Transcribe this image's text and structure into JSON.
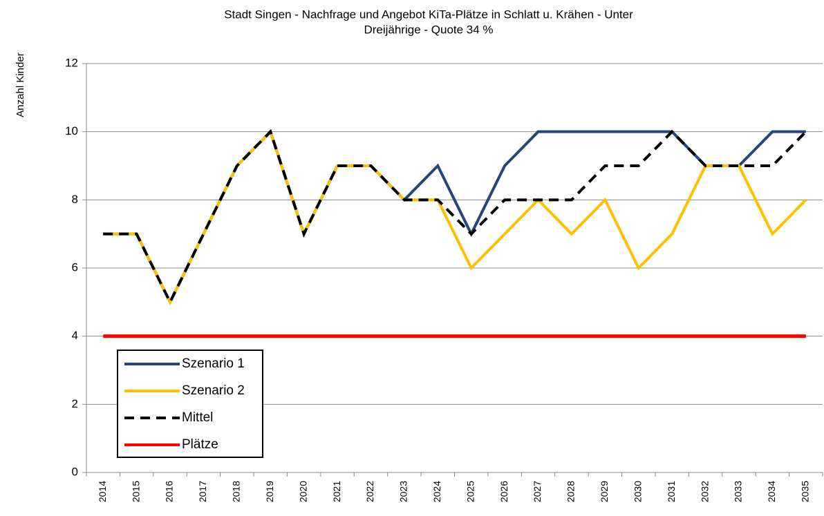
{
  "chart_data": {
    "type": "line",
    "title": [
      "Stadt Singen - Nachfrage und Angebot KiTa-Plätze in  Schlatt u. Krähen - Unter",
      "Dreijährige - Quote 34 %"
    ],
    "y_label": "Anzahl Kinder",
    "categories": [
      "2014",
      "2015",
      "2016",
      "2017",
      "2018",
      "2019",
      "2020",
      "2021",
      "2022",
      "2023",
      "2024",
      "2025",
      "2026",
      "2027",
      "2028",
      "2029",
      "2030",
      "2031",
      "2032",
      "2033",
      "2034",
      "2035"
    ],
    "series": [
      {
        "name": "Szenario 1",
        "color": "#24467a",
        "dash": false,
        "values": [
          7,
          7,
          5,
          7,
          9,
          10,
          7,
          9,
          9,
          8,
          9,
          7,
          9,
          10,
          10,
          10,
          10,
          10,
          9,
          9,
          10,
          10
        ]
      },
      {
        "name": "Szenario 2",
        "color": "#ffc000",
        "dash": false,
        "values": [
          7,
          7,
          5,
          7,
          9,
          10,
          7,
          9,
          9,
          8,
          8,
          6,
          7,
          8,
          7,
          8,
          6,
          7,
          9,
          9,
          7,
          8
        ]
      },
      {
        "name": "Mittel",
        "color": "#000000",
        "dash": true,
        "values": [
          7,
          7,
          5,
          7,
          9,
          10,
          7,
          9,
          9,
          8,
          8,
          7,
          8,
          8,
          8,
          9,
          9,
          10,
          9,
          9,
          9,
          10
        ]
      },
      {
        "name": "Plätze",
        "color": "#ff0000",
        "dash": false,
        "values": [
          4,
          4,
          4,
          4,
          4,
          4,
          4,
          4,
          4,
          4,
          4,
          4,
          4,
          4,
          4,
          4,
          4,
          4,
          4,
          4,
          4,
          4
        ]
      }
    ],
    "ylim": [
      0,
      12
    ],
    "yticks": [
      0,
      2,
      4,
      6,
      8,
      10,
      12
    ],
    "grid": true,
    "legend": "lower left"
  }
}
